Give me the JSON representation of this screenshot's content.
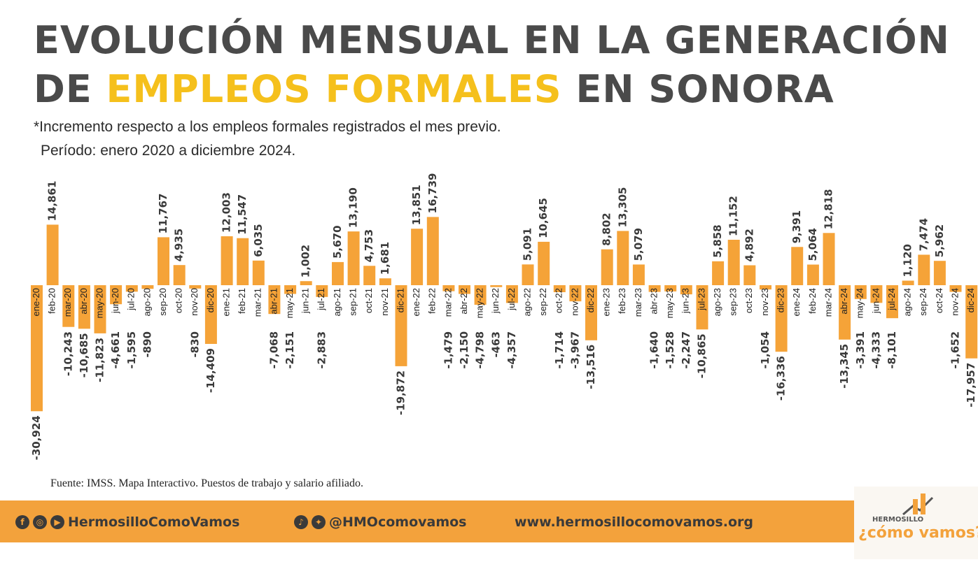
{
  "title": {
    "line1": "EVOLUCIÓN MENSUAL EN LA GENERACIÓN",
    "line2_pre": "DE ",
    "line2_highlight": "EMPLEOS FORMALES",
    "line2_post": " EN SONORA"
  },
  "subtitle": {
    "note": "*Incremento respecto a los empleos formales registrados el mes previo.",
    "period": "Período: enero 2020 a diciembre 2024."
  },
  "source": "Fuente: IMSS. Mapa Interactivo. Puestos de trabajo y salario afiliado.",
  "footer": {
    "social_name": "HermosilloComoVamos",
    "handle": "@HMOcomovamos",
    "website": "www.hermosillocomovamos.org",
    "icons": [
      "facebook-icon",
      "instagram-icon",
      "youtube-icon",
      "tiktok-icon",
      "twitter-icon"
    ]
  },
  "logo": {
    "small_text": "HERMOSILLO",
    "main_text": "¿cómo vamos?"
  },
  "colors": {
    "bar": "#f5a338",
    "title_dark": "#4a4a4a",
    "title_highlight": "#f5c01c",
    "footer_band": "#f3a23c"
  },
  "chart_data": {
    "type": "bar",
    "categories": [
      "ene-20",
      "feb-20",
      "mar-20",
      "abr-20",
      "may-20",
      "jun-20",
      "jul-20",
      "ago-20",
      "sep-20",
      "oct-20",
      "nov-20",
      "dic-20",
      "ene-21",
      "feb-21",
      "mar-21",
      "abr-21",
      "may-21",
      "jun-21",
      "jul-21",
      "ago-21",
      "sep-21",
      "oct-21",
      "nov-21",
      "dic-21",
      "ene-22",
      "feb-22",
      "mar-22",
      "abr-22",
      "may-22",
      "jun-22",
      "jul-22",
      "ago-22",
      "sep-22",
      "oct-22",
      "nov-22",
      "dic-22",
      "ene-23",
      "feb-23",
      "mar-23",
      "abr-23",
      "may-23",
      "jun-23",
      "jul-23",
      "ago-23",
      "sep-23",
      "oct-23",
      "nov-23",
      "dic-23",
      "ene-24",
      "feb-24",
      "mar-24",
      "abr-24",
      "may-24",
      "jun-24",
      "jul-24",
      "ago-24",
      "sep-24",
      "oct-24",
      "nov-24",
      "dic-24"
    ],
    "values": [
      -30924,
      14861,
      -10243,
      -10685,
      -11823,
      -4661,
      -1595,
      -890,
      11767,
      4935,
      -830,
      -14409,
      12003,
      11547,
      6035,
      -7068,
      -2151,
      1002,
      -2883,
      5670,
      13190,
      4753,
      1681,
      -19872,
      13851,
      16739,
      -1479,
      -2150,
      -4798,
      -463,
      -4357,
      5091,
      10645,
      -1714,
      -3967,
      -13516,
      8802,
      13305,
      5079,
      -1640,
      -1528,
      -2247,
      -10865,
      5858,
      11152,
      4892,
      -1054,
      -16336,
      9391,
      5064,
      12818,
      -13345,
      -3391,
      -4333,
      -8101,
      1120,
      7474,
      5962,
      -1652,
      -17957
    ],
    "value_labels": [
      "-30,924",
      "14,861",
      "-10,243",
      "-10,685",
      "-11,823",
      "-4,661",
      "-1,595",
      "-890",
      "11,767",
      "4,935",
      "-830",
      "-14,409",
      "12,003",
      "11,547",
      "6,035",
      "-7,068",
      "-2,151",
      "1,002",
      "-2,883",
      "5,670",
      "13,190",
      "4,753",
      "1,681",
      "-19,872",
      "13,851",
      "16,739",
      "-1,479",
      "-2,150",
      "-4,798",
      "-463",
      "-4,357",
      "5,091",
      "10,645",
      "-1,714",
      "-3,967",
      "-13,516",
      "8,802",
      "13,305",
      "5,079",
      "-1,640",
      "-1,528",
      "-2,247",
      "-10,865",
      "5,858",
      "11,152",
      "4,892",
      "-1,054",
      "-16,336",
      "9,391",
      "5,064",
      "12,818",
      "-13,345",
      "-3,391",
      "-4,333",
      "-8,101",
      "1,120",
      "7,474",
      "5,962",
      "-1,652",
      "-17,957"
    ],
    "ylim": [
      -31000,
      17000
    ],
    "grid": false,
    "legend": "none"
  }
}
